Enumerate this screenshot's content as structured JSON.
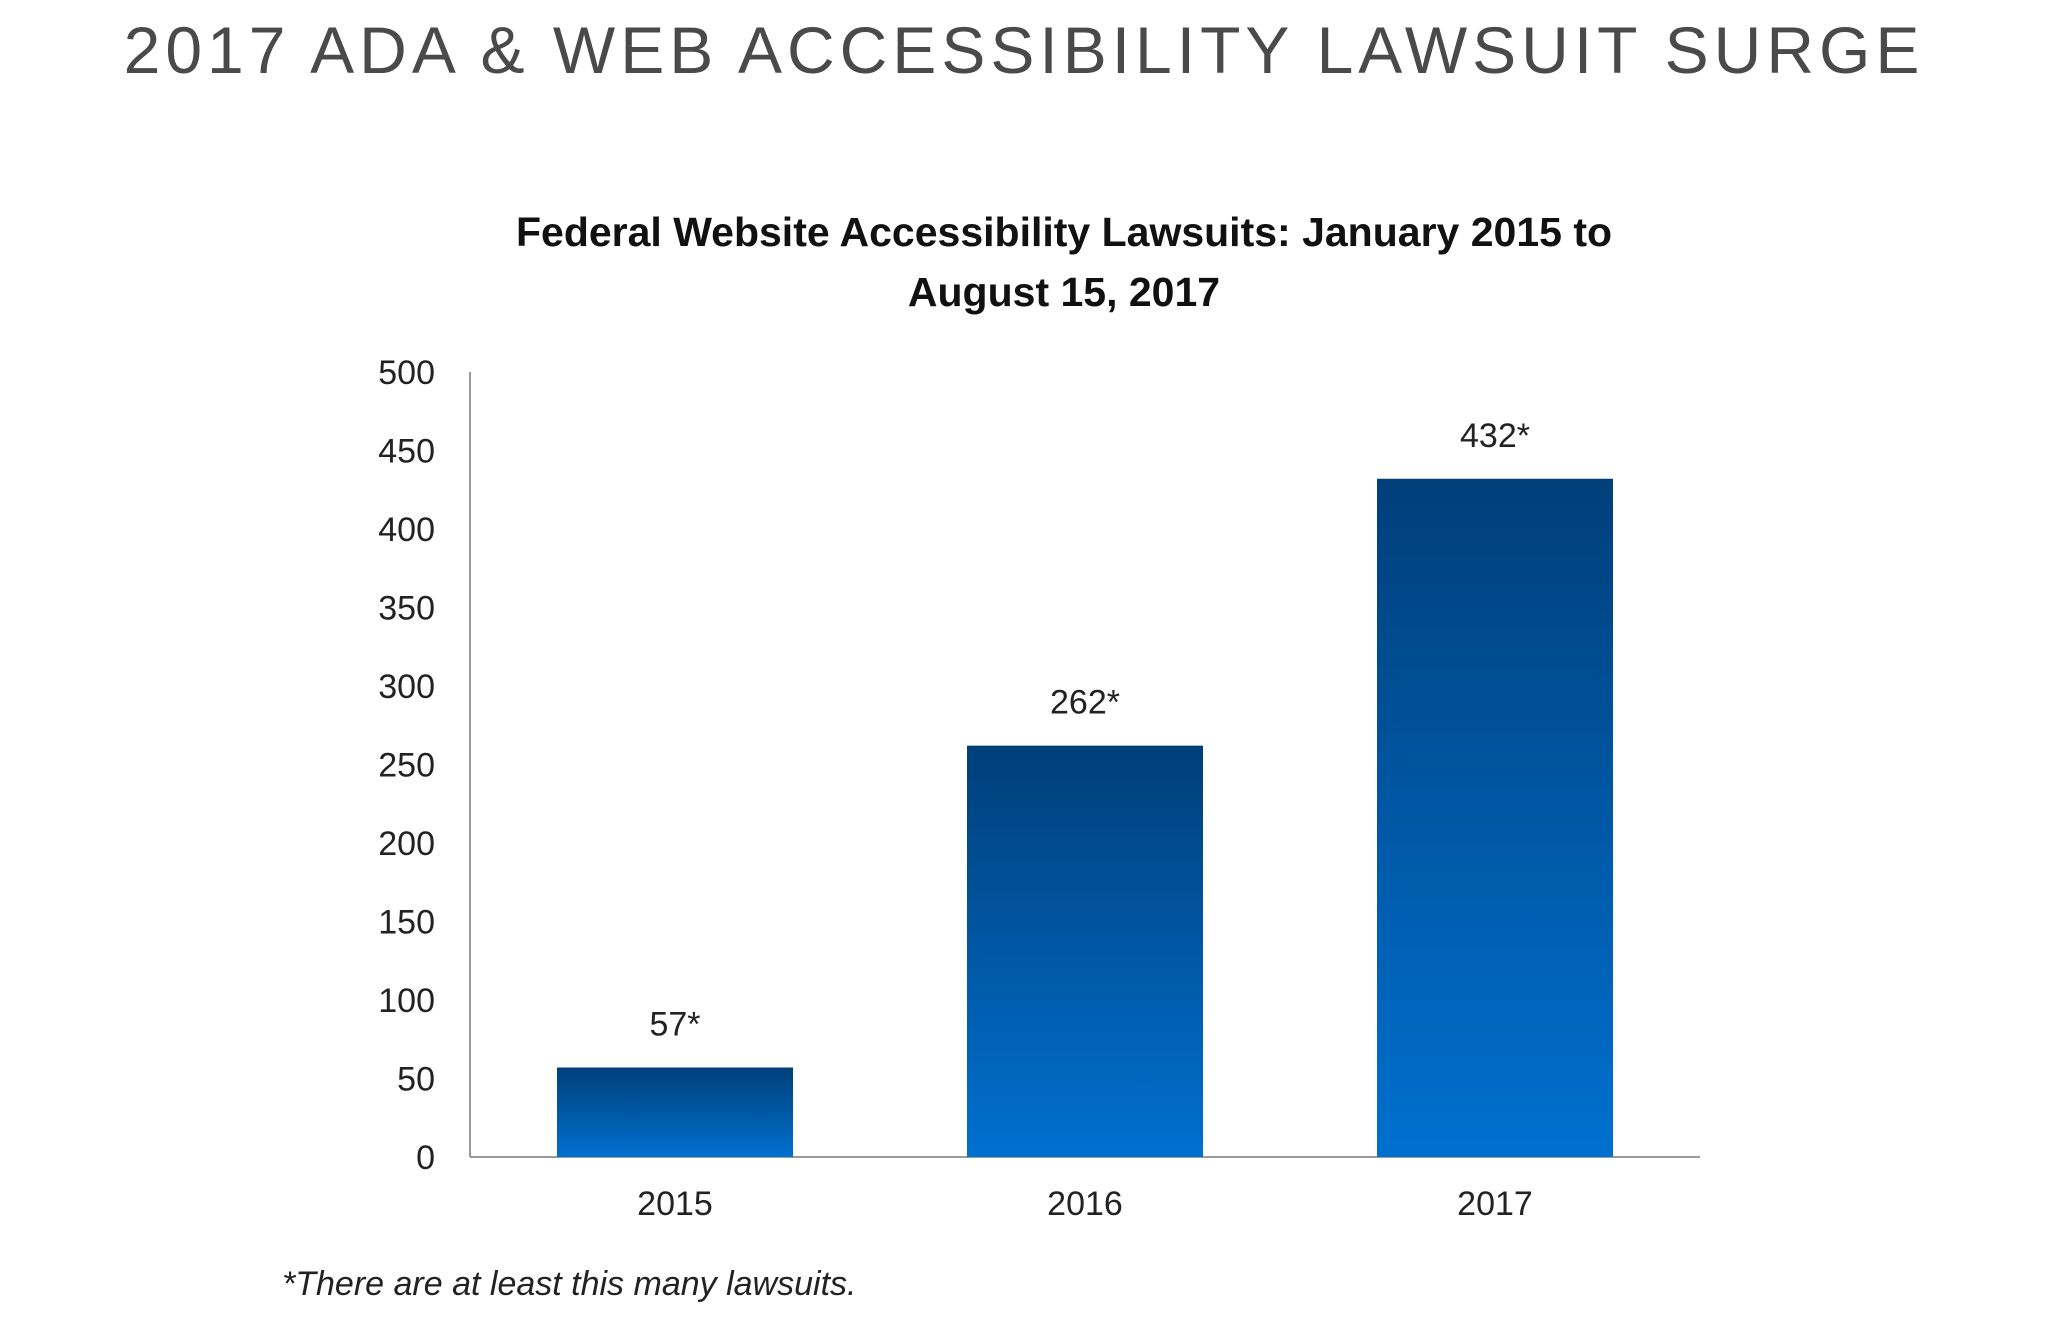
{
  "page": {
    "title": "2017 ADA & WEB ACCESSIBILITY LAWSUIT SURGE",
    "footnote": "*There are at least this many lawsuits."
  },
  "colors": {
    "bar_top": "#003f7a",
    "bar_bottom": "#0070cf",
    "axis": "#9a9a9a"
  },
  "chart_data": {
    "type": "bar",
    "title_lines": [
      "Federal Website Accessibility Lawsuits: January 2015 to",
      "August 15, 2017"
    ],
    "categories": [
      "2015",
      "2016",
      "2017"
    ],
    "values": [
      57,
      262,
      432
    ],
    "data_labels": [
      "57*",
      "262*",
      "432*"
    ],
    "ylim": [
      0,
      500
    ],
    "yticks": [
      0,
      50,
      100,
      150,
      200,
      250,
      300,
      350,
      400,
      450,
      500
    ],
    "xlabel": "",
    "ylabel": "",
    "grid": false,
    "legend": "none"
  }
}
